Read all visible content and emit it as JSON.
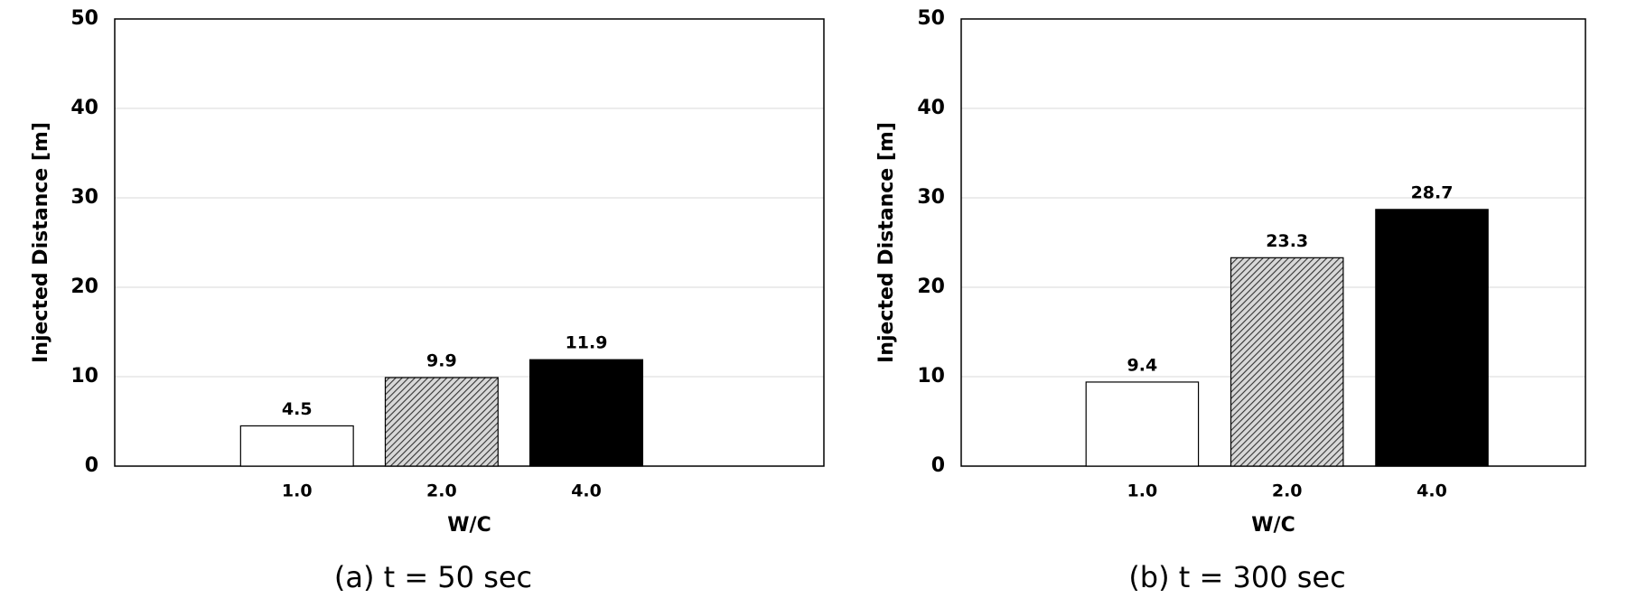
{
  "chart_data": [
    {
      "type": "bar",
      "caption": "(a) t = 50 sec",
      "ylabel": "Injected Distance [m]",
      "xlabel": "W/C",
      "categories": [
        "1.0",
        "2.0",
        "4.0"
      ],
      "values": [
        4.5,
        9.9,
        11.9
      ],
      "colors": [
        "#ffffff",
        "#ffffff",
        "#000000"
      ],
      "hatch": [
        false,
        true,
        false
      ],
      "ylim": [
        0,
        50
      ],
      "yticks": [
        0,
        10,
        20,
        30,
        40,
        50
      ],
      "grid": true
    },
    {
      "type": "bar",
      "caption": "(b) t = 300 sec",
      "ylabel": "Injected Distance [m]",
      "xlabel": "W/C",
      "categories": [
        "1.0",
        "2.0",
        "4.0"
      ],
      "values": [
        9.4,
        23.3,
        28.7
      ],
      "colors": [
        "#ffffff",
        "#ffffff",
        "#000000"
      ],
      "hatch": [
        false,
        true,
        false
      ],
      "ylim": [
        0,
        50
      ],
      "yticks": [
        0,
        10,
        20,
        30,
        40,
        50
      ],
      "grid": true
    }
  ]
}
